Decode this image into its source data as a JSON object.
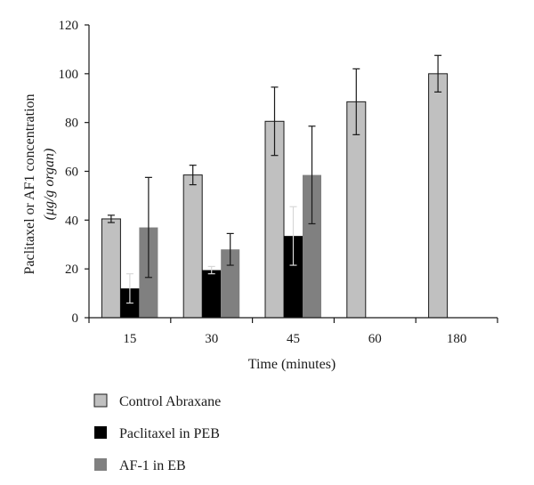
{
  "chart_data": {
    "type": "bar",
    "categories": [
      "15",
      "30",
      "45",
      "60",
      "180"
    ],
    "xlabel": "Time (minutes)",
    "ylabel_line1": "Paclitaxel or AF1 concentration",
    "ylabel_line2": "(μg/g organ)",
    "ylim": [
      0,
      120
    ],
    "yticks": [
      "0",
      "20",
      "40",
      "60",
      "80",
      "100",
      "120"
    ],
    "grid": false,
    "legend_position": "bottom-left",
    "series": [
      {
        "name": "Control Abraxane",
        "color": "#c0c0c0",
        "values": [
          40.5,
          58.5,
          80.5,
          88.5,
          100
        ],
        "errors": [
          1.5,
          4,
          14,
          13.5,
          7.5
        ]
      },
      {
        "name": "Paclitaxel in PEB",
        "color": "#000000",
        "values": [
          12,
          19.5,
          33.5,
          null,
          null
        ],
        "errors": [
          6,
          1.5,
          12,
          null,
          null
        ]
      },
      {
        "name": "AF-1 in EB",
        "color": "#808080",
        "values": [
          37,
          28,
          58.5,
          null,
          null
        ],
        "errors": [
          20.5,
          6.5,
          20,
          null,
          null
        ]
      }
    ]
  }
}
